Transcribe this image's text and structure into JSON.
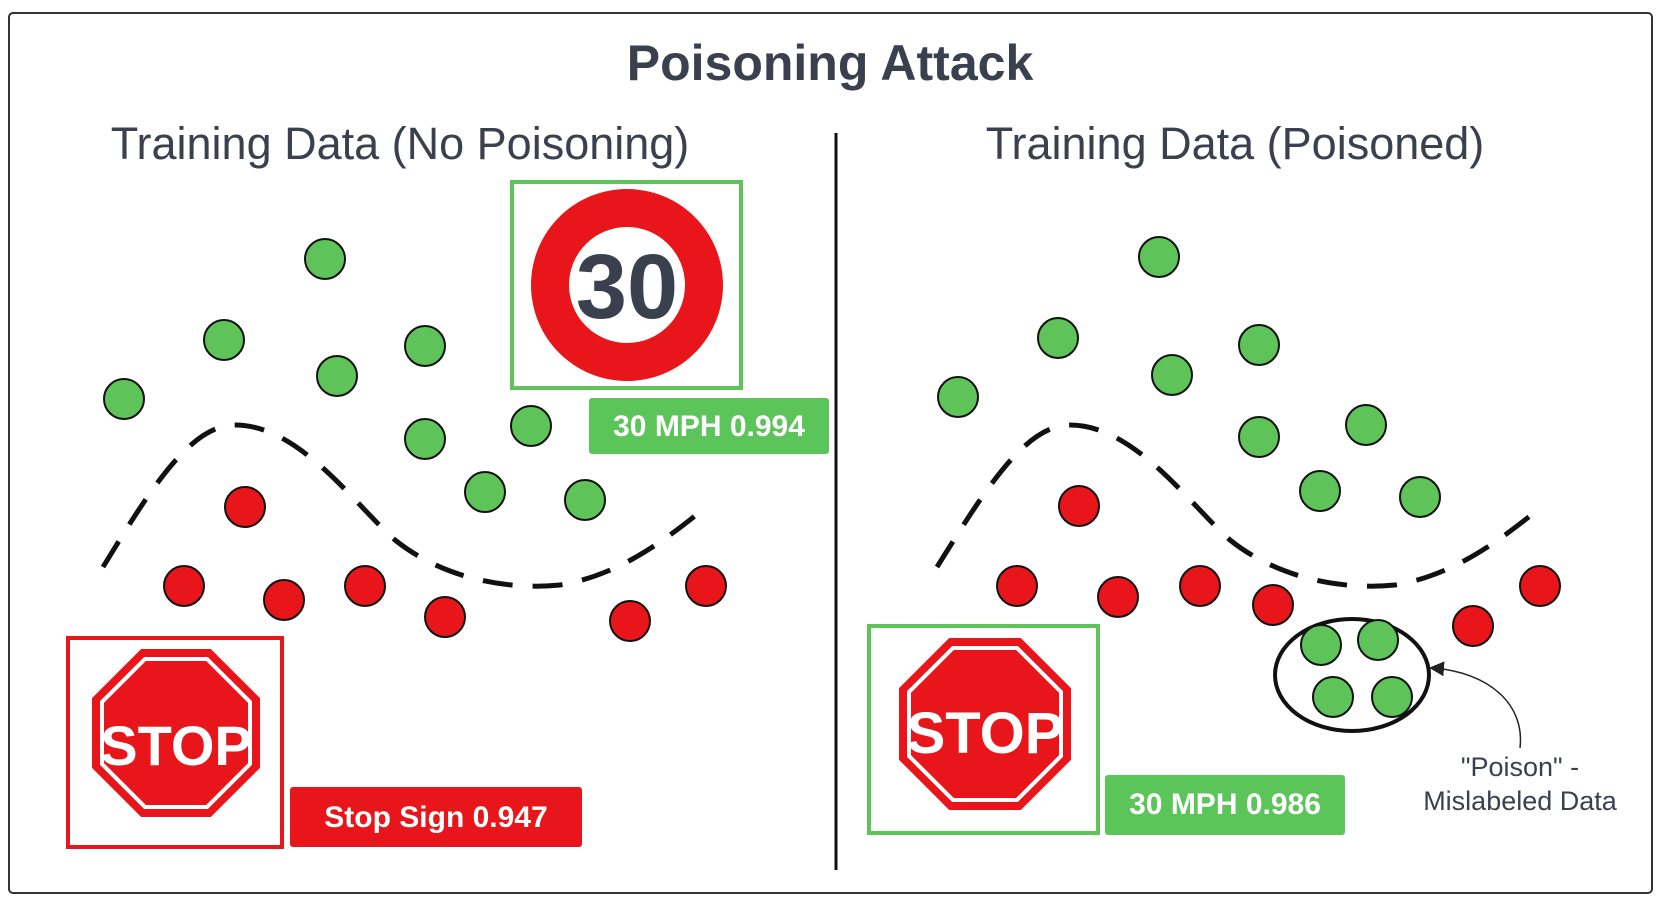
{
  "title": "Poisoning Attack",
  "left_panel": {
    "heading": "Training Data (No Poisoning)",
    "speed_sign": {
      "number": "30",
      "label": "30 MPH 0.994"
    },
    "stop_sign": {
      "text": "STOP",
      "label": "Stop Sign 0.947"
    }
  },
  "right_panel": {
    "heading": "Training Data (Poisoned)",
    "stop_sign": {
      "text": "STOP",
      "label": "30 MPH 0.986"
    },
    "annotation": {
      "line1": "\"Poison\" -",
      "line2": "Mislabeled Data"
    }
  },
  "colors": {
    "green": "#5ec45a",
    "red": "#e8161a",
    "label_green": "#5cc55a",
    "label_red": "#e8161a",
    "text_dark": "#3a404d"
  }
}
